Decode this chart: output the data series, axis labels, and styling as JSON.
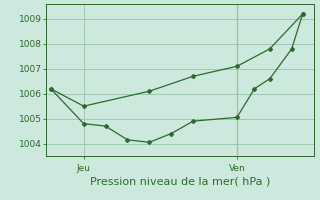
{
  "line1_x": [
    0,
    1.5,
    4.5,
    6.5,
    8.5,
    10.0,
    11.5
  ],
  "line1_y": [
    1006.2,
    1005.5,
    1006.1,
    1006.7,
    1007.1,
    1007.8,
    1009.2
  ],
  "line2_x": [
    0,
    1.5,
    2.5,
    3.5,
    4.5,
    5.5,
    6.5,
    8.5,
    9.3,
    10.0,
    11.0,
    11.5
  ],
  "line2_y": [
    1006.2,
    1004.8,
    1004.7,
    1004.15,
    1004.05,
    1004.4,
    1004.9,
    1005.05,
    1006.2,
    1006.6,
    1007.8,
    1009.2
  ],
  "line_color": "#2d6a2d",
  "bg_color": "#cde8dc",
  "grid_color": "#9ec8b4",
  "ylim": [
    1003.5,
    1009.6
  ],
  "yticks": [
    1004,
    1005,
    1006,
    1007,
    1008,
    1009
  ],
  "xlabel": "Pression niveau de la mer( hPa )",
  "xlim": [
    -0.2,
    12.0
  ],
  "x_jeu": 1.5,
  "x_ven": 8.5,
  "vline_x": 8.5,
  "label_jeu": "Jeu",
  "label_ven": "Ven",
  "tick_fontsize": 6.5,
  "label_fontsize": 8.0
}
